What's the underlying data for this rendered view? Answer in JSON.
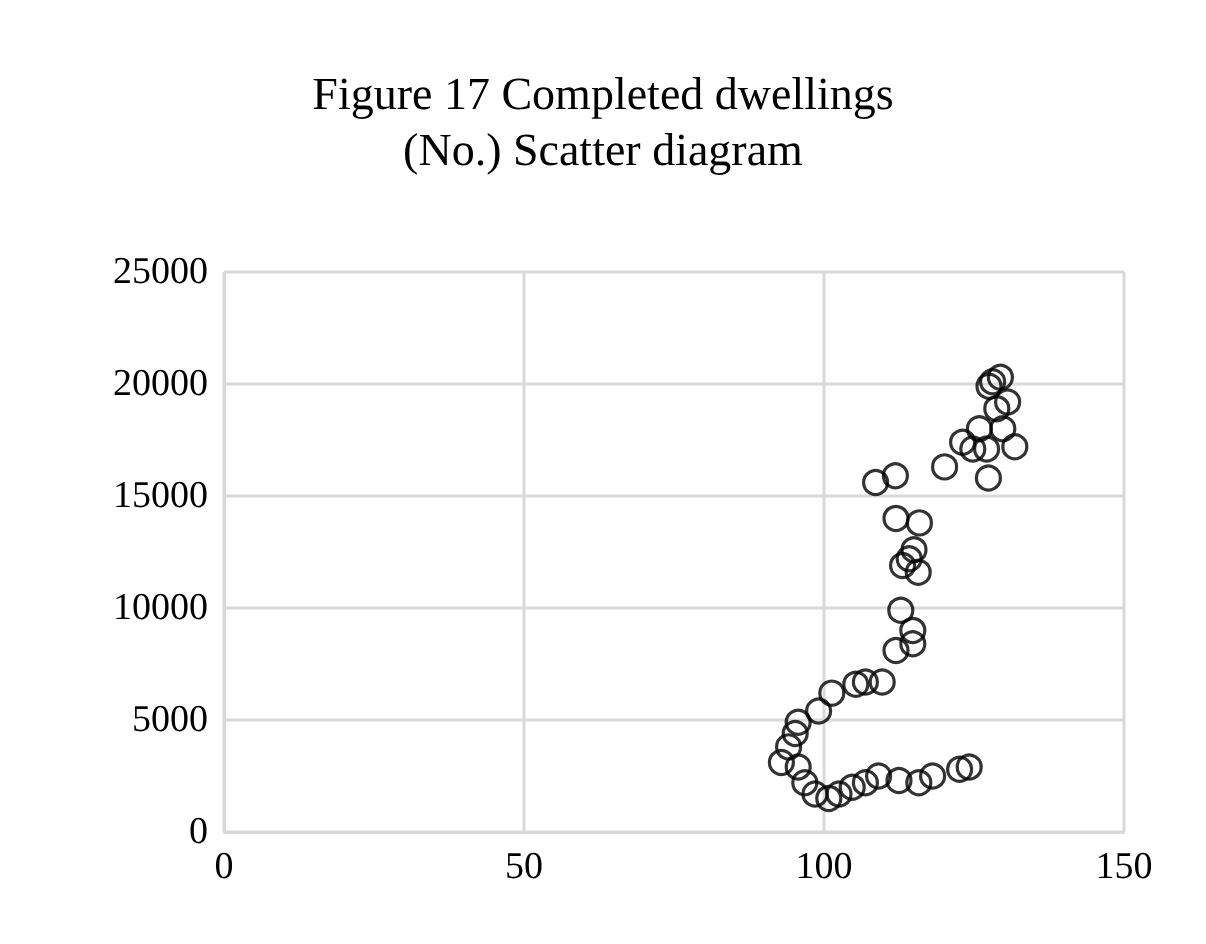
{
  "chart_data": {
    "type": "scatter",
    "title": "Figure 17 Completed dwellings\n(No.) Scatter diagram",
    "series": [
      {
        "color": "#000000",
        "x": [
          128.1,
          129.4,
          127.5,
          130.6,
          128.8,
          125.9,
          129.8,
          123.1,
          124.8,
          127.1,
          131.8,
          120.1,
          127.4,
          108.6,
          111.9,
          112,
          115.9,
          115,
          113.1,
          115.7,
          114.2,
          112.8,
          114.8,
          114.8,
          112,
          109.7,
          106.9,
          105.3,
          101.3,
          99.1,
          95.7,
          95.2,
          94.1,
          92.9,
          95.7,
          96.8,
          98.5,
          100.8,
          102.5,
          104.7,
          106.9,
          109.1,
          112.5,
          115.8,
          118.1,
          122.6,
          124.2
        ],
        "values": [
          20100,
          20300,
          19900,
          19200,
          18900,
          18000,
          18000,
          17400,
          17100,
          17100,
          17200,
          16300,
          15800,
          15600,
          15900,
          14000,
          13800,
          12600,
          11900,
          11600,
          12200,
          9900,
          9000,
          8400,
          8100,
          6700,
          6700,
          6600,
          6200,
          5400,
          4900,
          4400,
          3800,
          3100,
          2900,
          2200,
          1700,
          1500,
          1700,
          2000,
          2200,
          2500,
          2300,
          2200,
          2500,
          2800,
          2900
        ]
      }
    ],
    "xlim": [
      0,
      150
    ],
    "xticks": [
      0,
      50,
      100,
      150
    ],
    "ylim": [
      0,
      25000
    ],
    "yticks": [
      0,
      5000,
      10000,
      15000,
      20000,
      25000
    ],
    "grid": true,
    "marker": "circle"
  }
}
